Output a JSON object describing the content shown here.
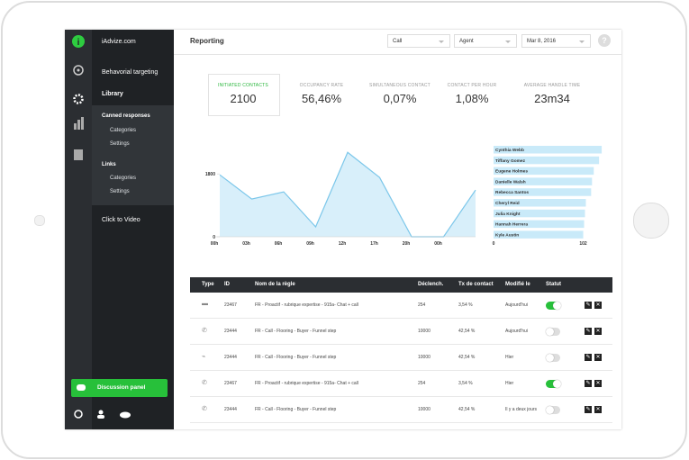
{
  "sidebar": {
    "brand": "iAdvize.com",
    "items": [
      "Behavorial targeting",
      "Library"
    ],
    "submenu": [
      {
        "title": "Canned responses",
        "items": [
          "Categories",
          "Settings"
        ]
      },
      {
        "title": "Links",
        "items": [
          "Categories",
          "Settings"
        ]
      }
    ],
    "extra": "Click to Video",
    "button": "Discussion panel"
  },
  "header": {
    "title": "Reporting",
    "filters": [
      "Call",
      "Agent",
      "Mar 8, 2016"
    ]
  },
  "kpis": [
    {
      "label": "INITIATED CONTACTS",
      "value": 2100
    },
    {
      "label": "OCCUPANCY RATE",
      "value": "56,46%"
    },
    {
      "label": "SIMULTANEOUS CONTACT",
      "value": "0,07%"
    },
    {
      "label": "CONTACT PER HOUR",
      "value": "1,08%"
    },
    {
      "label": "AVERAGE HANDLE TIME",
      "value": "23m34"
    }
  ],
  "line_chart": {
    "type": "line",
    "categories": [
      "00h",
      "03h",
      "06h",
      "09h",
      "12h",
      "17h",
      "20h",
      "00h",
      null
    ],
    "values": [
      1774,
      1080,
      1286,
      283,
      2417,
      1697,
      0,
      0,
      1337
    ],
    "ylim": [
      0,
      2500
    ],
    "yticks": [
      0,
      1800
    ],
    "color": "#7cc7ea"
  },
  "bar_chart": {
    "type": "bar",
    "categories": [
      "Cynthia Webb",
      "Tiffany Gomez",
      "Eugene Holmes",
      "Danielle Walsh",
      "Rebecca Santos",
      "Cheryl Reid",
      "Julia Knight",
      "Hannah Herrera",
      "Kyle Austin"
    ],
    "values": [
      123,
      120,
      114,
      112,
      111,
      105,
      104,
      103,
      102
    ],
    "xlim": [
      0,
      125
    ],
    "xticks": [
      0,
      102
    ],
    "color": "#c9eaf9"
  },
  "table": {
    "columns": [
      "Type",
      "ID",
      "Nom de la règle",
      "Déclench.",
      "Tx de contact",
      "Modifié le",
      "Statut"
    ],
    "rows": [
      [
        23467,
        "FR - Proactif - rubrique expertise - 915a- Chat + call",
        254,
        "3,54 %",
        "Aujourd'hui"
      ],
      [
        23444,
        "FR - Call - Flooring - Buyer - Funnel step",
        10000,
        "42,54 %",
        "Aujourd'hui"
      ],
      [
        23444,
        "FR - Call - Flooring - Buyer - Funnel step",
        10000,
        "42,54 %",
        "Hier"
      ],
      [
        23467,
        "FR - Proactif - rubrique expertise - 915a- Chat + call",
        254,
        "3,54 %",
        "Hier"
      ],
      [
        23444,
        "FR - Call - Flooring - Buyer - Funnel step",
        10000,
        "42,54 %",
        "Il y a deux jours"
      ]
    ],
    "active": [
      true,
      false,
      false,
      true,
      false
    ]
  }
}
